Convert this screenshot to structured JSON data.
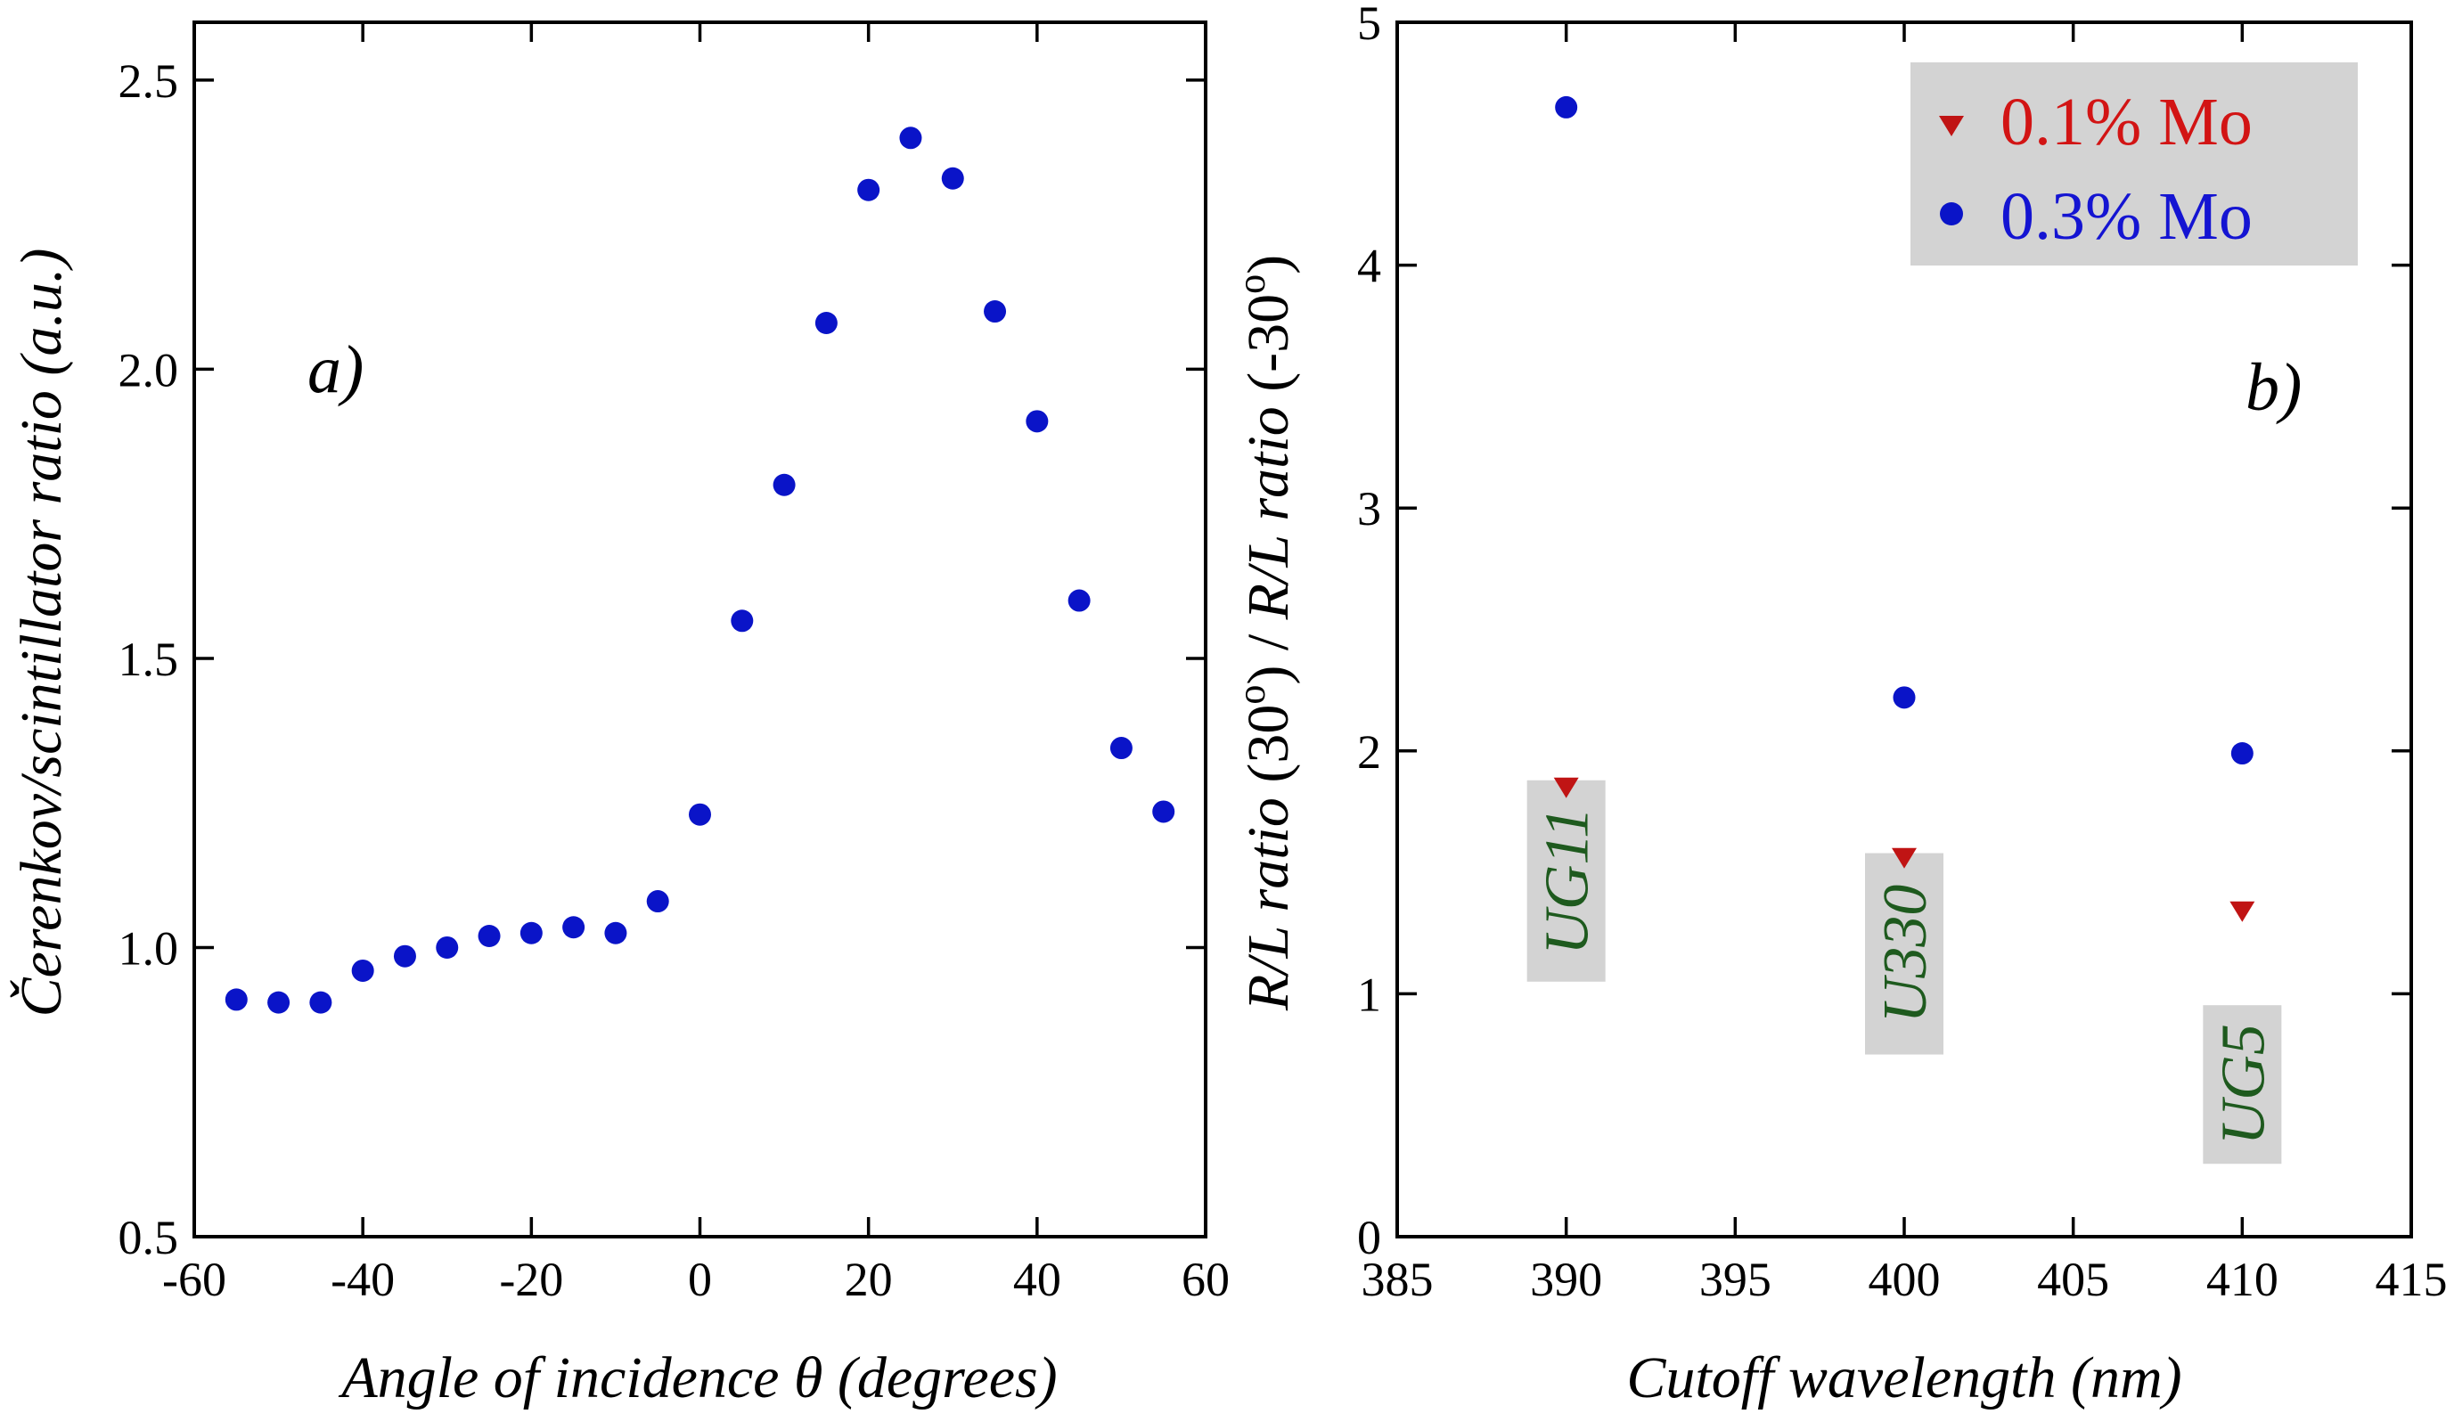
{
  "chart_data": [
    {
      "type": "scatter",
      "panel_label": "a)",
      "xlabel": "Angle of incidence θ (degrees)",
      "ylabel": "Čerenkov/scintillator ratio (a.u.)",
      "xlim": [
        -60,
        60
      ],
      "ylim": [
        0.5,
        2.6
      ],
      "xticks": [
        "-60",
        "-40",
        "-20",
        "0",
        "20",
        "40",
        "60"
      ],
      "yticks": [
        "0.5",
        "1.0",
        "1.5",
        "2.0",
        "2.5"
      ],
      "grid": false,
      "series": [
        {
          "color": "#0a14c8",
          "marker": "circle",
          "x": [
            -55,
            -50,
            -45,
            -40,
            -35,
            -30,
            -25,
            -20,
            -15,
            -10,
            -5,
            0,
            5,
            10,
            15,
            20,
            25,
            30,
            35,
            40,
            45,
            50,
            55
          ],
          "y": [
            0.91,
            0.905,
            0.905,
            0.96,
            0.985,
            1.0,
            1.02,
            1.025,
            1.035,
            1.025,
            1.08,
            1.23,
            1.565,
            1.8,
            2.08,
            2.31,
            2.4,
            2.33,
            2.1,
            1.91,
            1.6,
            1.345,
            1.235
          ]
        }
      ]
    },
    {
      "type": "scatter",
      "panel_label": "b)",
      "xlabel": "Cutoff wavelength (nm)",
      "ylabel_parts": {
        "p1": "R/L ratio",
        "p2": " (30",
        "p3": "o",
        "p4": ") / ",
        "p5": "R/L ratio",
        "p6": " (-30",
        "p7": "o",
        "p8": ")"
      },
      "xlim": [
        385,
        415
      ],
      "ylim": [
        0,
        5
      ],
      "xticks": [
        "385",
        "390",
        "395",
        "400",
        "405",
        "410",
        "415"
      ],
      "yticks": [
        "0",
        "1",
        "2",
        "3",
        "4",
        "5"
      ],
      "grid": false,
      "legend_position": "top-right",
      "series": [
        {
          "name": "0.1% Mo",
          "color": "#c01414",
          "marker": "triangle-down",
          "x": [
            390,
            400,
            410
          ],
          "y": [
            1.85,
            1.56,
            1.34
          ]
        },
        {
          "name": "0.3% Mo",
          "color": "#0a14c8",
          "marker": "circle",
          "x": [
            390,
            400,
            410
          ],
          "y": [
            4.65,
            2.22,
            1.99
          ]
        }
      ],
      "annotations": [
        {
          "text": "UG11",
          "x": 390,
          "y": 1.05
        },
        {
          "text": "U330",
          "x": 400,
          "y": 0.75
        },
        {
          "text": "UG5",
          "x": 410,
          "y": 0.3
        }
      ]
    }
  ]
}
